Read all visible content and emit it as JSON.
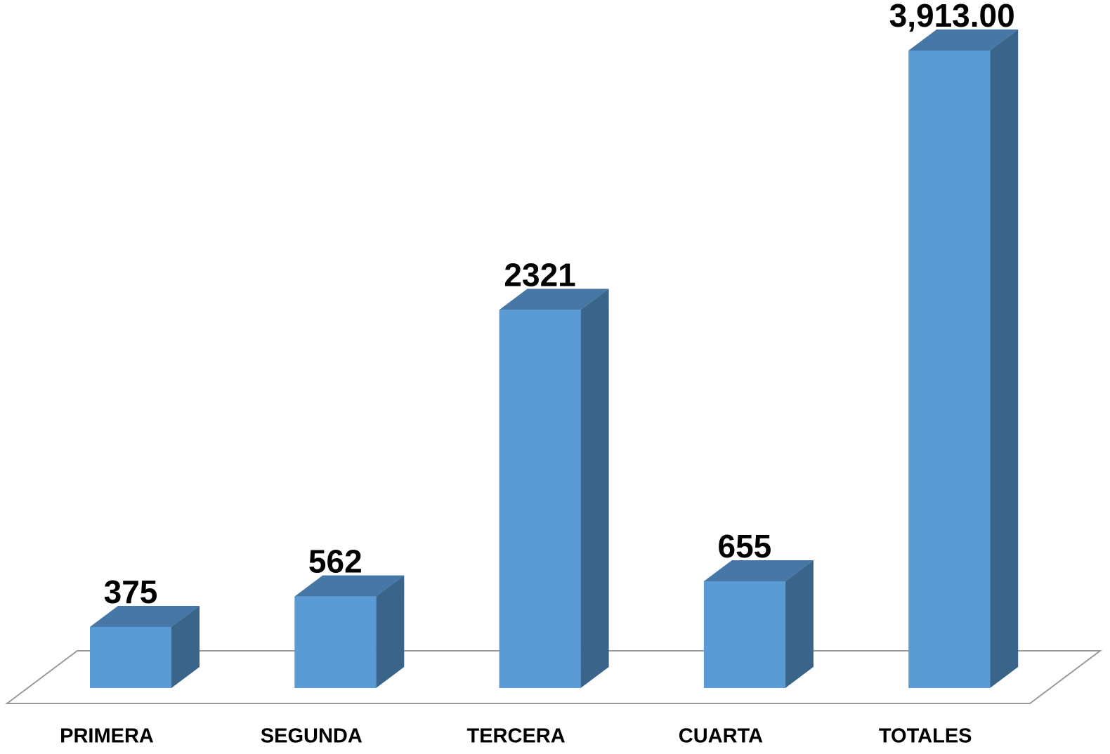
{
  "chart_data": {
    "type": "bar3d",
    "categories": [
      "PRIMERA",
      "SEGUNDA",
      "TERCERA",
      "CUARTA",
      "TOTALES"
    ],
    "values": [
      375,
      562,
      2321,
      655,
      3913
    ],
    "value_labels": [
      "375",
      "562",
      "2321",
      "655",
      "3,913.00"
    ],
    "color": "#5b9bd5"
  }
}
